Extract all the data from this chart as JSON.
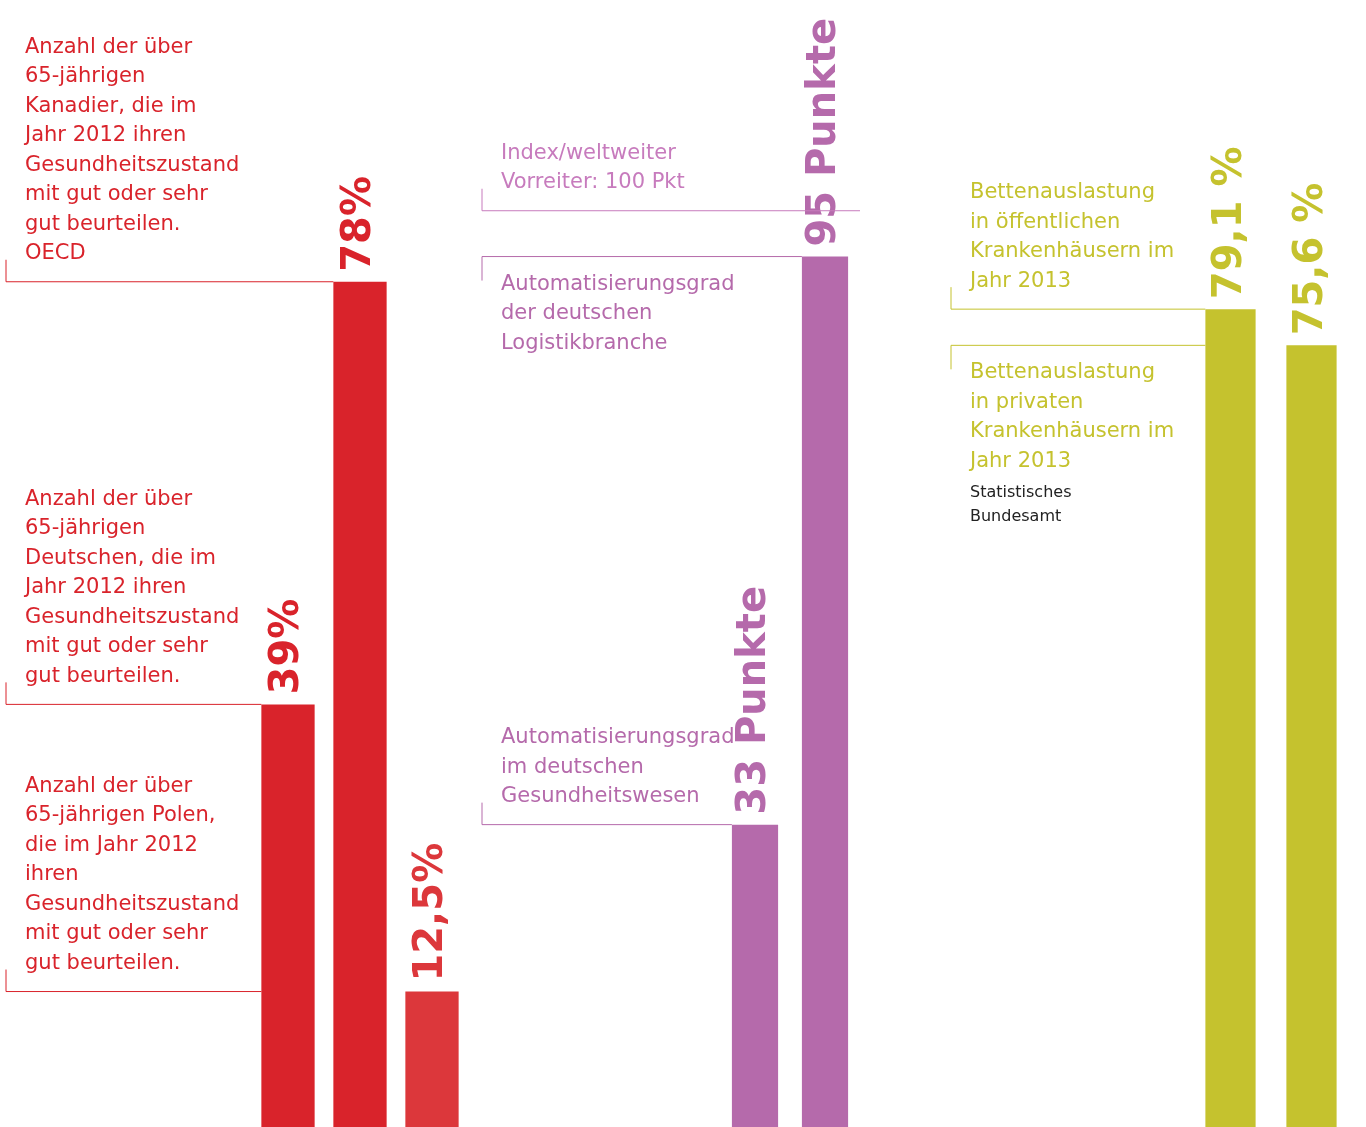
{
  "chart_data": [
    {
      "type": "bar",
      "categories": [
        null,
        null,
        null
      ],
      "values": [
        39,
        78,
        12.5
      ],
      "colors": [
        "#d9232b",
        "#d9232b",
        "#dc373b"
      ],
      "value_labels": [
        "39%",
        "78%",
        "12,5%"
      ],
      "ylim": [
        0,
        104
      ],
      "tick_labels": false,
      "legend": false,
      "annotations": [
        "Anzahl der über 65-jährigen Deutschen, die im Jahr 2012 ihren Gesundheitszustand mit gut oder sehr gut beurteilen.",
        "Anzahl der über 65-jährigen Kanadier, die im Jahr 2012 ihren Gesundheitszustand mit gut oder sehr gut beurteilen. OECD",
        "Anzahl der über 65-jährigen Polen, die im Jahr 2012 ihren Gesundheitszustand mit gut oder sehr gut beurteilen."
      ]
    },
    {
      "type": "bar",
      "categories": [
        null,
        null
      ],
      "values": [
        33,
        95
      ],
      "colors": [
        "#b56aab",
        "#b56aab"
      ],
      "value_labels": [
        "33 Punkte",
        "95 Punkte"
      ],
      "ylim": [
        0,
        123
      ],
      "tick_labels": false,
      "legend": false,
      "ref_lines": [
        {
          "axis": "y",
          "value": 100,
          "label": "Index/weltweiter Vorreiter: 100 Pkt",
          "color": "#c77bbd"
        }
      ],
      "annotations": [
        "Automatisierungsgrad im deutschen Gesundheitswesen",
        "Automatisierungsgrad der deutschen Logistikbranche"
      ]
    },
    {
      "type": "bar",
      "categories": [
        null,
        null
      ],
      "values": [
        79.1,
        75.6
      ],
      "colors": [
        "#c5c22e",
        "#c5c22e"
      ],
      "value_labels": [
        "79,1 %",
        "75,6 %"
      ],
      "ylim": [
        0,
        109
      ],
      "tick_labels": false,
      "legend": false,
      "annotations": [
        "Bettenauslastung in öffentlichen Krankenhäusern im Jahr 2013",
        "Bettenauslastung in privaten Krankenhäusern im Jahr 2013",
        "Statistisches Bundesamt"
      ]
    }
  ]
}
